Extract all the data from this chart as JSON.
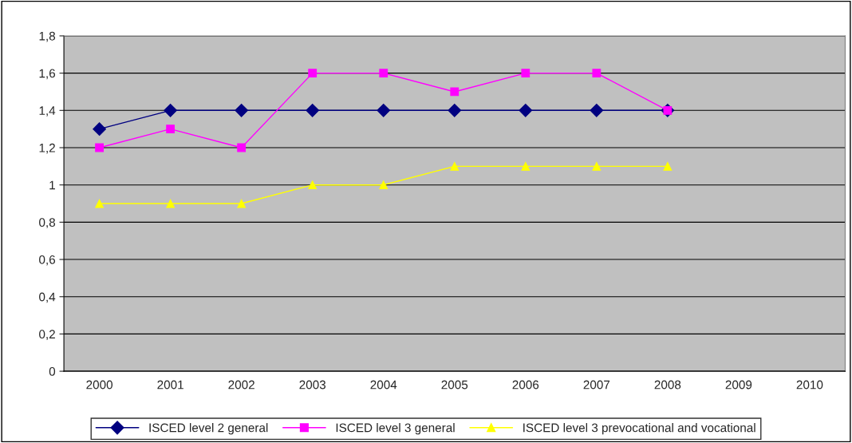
{
  "chart_data": {
    "type": "line",
    "categories": [
      "2000",
      "2001",
      "2002",
      "2003",
      "2004",
      "2005",
      "2006",
      "2007",
      "2008",
      "2009",
      "2010"
    ],
    "series": [
      {
        "name": "ISCED level 2 general",
        "color": "#000080",
        "marker": "diamond",
        "values": [
          1.3,
          1.4,
          1.4,
          1.4,
          1.4,
          1.4,
          1.4,
          1.4,
          1.4,
          null,
          null
        ]
      },
      {
        "name": "ISCED level 3 general",
        "color": "#ff00ff",
        "marker": "square",
        "values": [
          1.2,
          1.3,
          1.2,
          1.6,
          1.6,
          1.5,
          1.6,
          1.6,
          1.4,
          null,
          null
        ]
      },
      {
        "name": "ISCED level 3 prevocational and vocational",
        "color": "#ffff00",
        "marker": "triangle",
        "values": [
          0.9,
          0.9,
          0.9,
          1.0,
          1.0,
          1.1,
          1.1,
          1.1,
          1.1,
          null,
          null
        ]
      }
    ],
    "ylim": [
      0,
      1.8
    ],
    "yticks": [
      0,
      {
        "value": 0.2,
        "label": "0,2"
      },
      {
        "value": 0.4,
        "label": "0,4"
      },
      {
        "value": 0.6,
        "label": "0,6"
      },
      {
        "value": 0.8,
        "label": "0,8"
      },
      1,
      {
        "value": 1.2,
        "label": "1,2"
      },
      {
        "value": 1.4,
        "label": "1,4"
      },
      {
        "value": 1.6,
        "label": "1,6"
      },
      {
        "value": 1.8,
        "label": "1,8"
      }
    ],
    "grid": "y",
    "legend": "bottom",
    "line_style": "solid"
  }
}
